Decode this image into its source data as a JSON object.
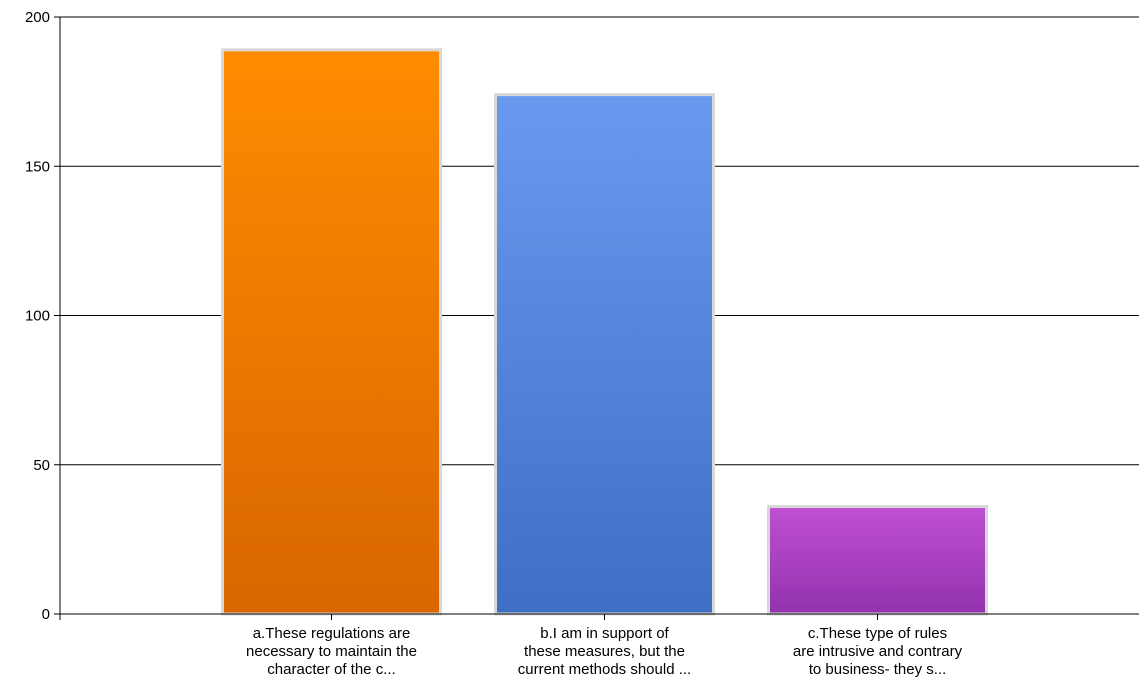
{
  "chart_data": {
    "type": "bar",
    "categories": [
      [
        "a.These  regulations are",
        "necessary to maintain the",
        "character of the c..."
      ],
      [
        "b.I am in support of",
        "these measures, but the",
        "current methods should ..."
      ],
      [
        "c.These type of rules",
        "are intrusive and contrary",
        "to business- they s..."
      ]
    ],
    "values": [
      189,
      174,
      36
    ],
    "ylim": [
      0,
      200
    ],
    "yticks": [
      0,
      50,
      100,
      150,
      200
    ],
    "grid": true,
    "legend": "none",
    "colors": [
      {
        "top": "#ff8c00",
        "bottom": "#d96600"
      },
      {
        "top": "#6a9aef",
        "bottom": "#3e6fc4"
      },
      {
        "top": "#c04fd4",
        "bottom": "#9232ae"
      }
    ],
    "bar_border_color": "#d8d8d8",
    "grid_color": "#000000",
    "axis_color": "#000000"
  }
}
